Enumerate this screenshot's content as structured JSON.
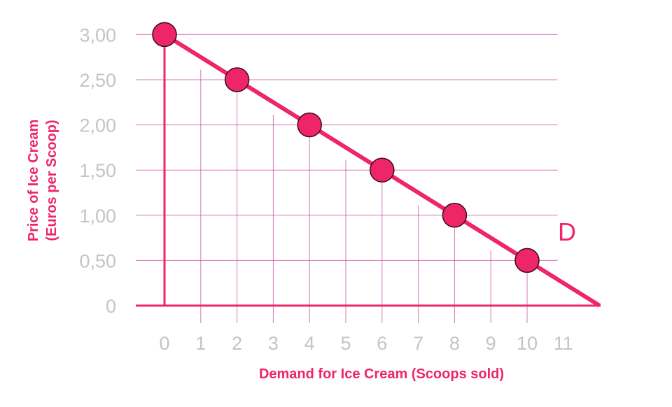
{
  "colors": {
    "accent": "#ee2667",
    "grid": "#c63fa0",
    "tick_text": "#c4c4c4"
  },
  "chart_data": {
    "type": "line",
    "xlabel": "Demand for Ice Cream (Scoops sold)",
    "ylabel_line1": "Price of Ice Cream",
    "ylabel_line2": "(Euros per Scoop)",
    "x_ticks": [
      "0",
      "1",
      "2",
      "3",
      "4",
      "5",
      "6",
      "7",
      "8",
      "9",
      "10",
      "11"
    ],
    "y_ticks": [
      "0",
      "0,50",
      "1,00",
      "1,50",
      "2,00",
      "2,50",
      "3,00"
    ],
    "xlim": [
      0,
      12
    ],
    "ylim": [
      0,
      3
    ],
    "series": [
      {
        "name": "D",
        "line": {
          "x": [
            0,
            12
          ],
          "y": [
            3.0,
            0.0
          ]
        },
        "points": [
          {
            "x": 0,
            "y": 3.0
          },
          {
            "x": 2,
            "y": 2.5
          },
          {
            "x": 4,
            "y": 2.0
          },
          {
            "x": 6,
            "y": 1.5
          },
          {
            "x": 8,
            "y": 1.0
          },
          {
            "x": 10,
            "y": 0.5
          }
        ]
      }
    ],
    "grid": true,
    "line_label": "D"
  }
}
